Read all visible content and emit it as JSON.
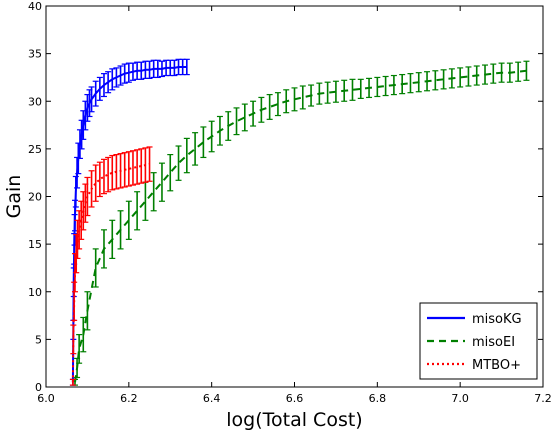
{
  "chart_data": {
    "type": "line",
    "xlabel": "log(Total Cost)",
    "ylabel": "Gain",
    "xlim": [
      6.0,
      7.2
    ],
    "ylim": [
      0,
      40
    ],
    "xticks": [
      "6.0",
      "6.2",
      "6.4",
      "6.6",
      "6.8",
      "7.0",
      "7.2"
    ],
    "yticks": [
      "0",
      "5",
      "10",
      "15",
      "20",
      "25",
      "30",
      "35",
      "40"
    ],
    "grid": false,
    "legend_position": "lower-right",
    "series": [
      {
        "name": "misoKG",
        "color": "#0000ff",
        "style": "solid",
        "x": [
          6.065,
          6.066,
          6.067,
          6.068,
          6.069,
          6.07,
          6.072,
          6.075,
          6.078,
          6.082,
          6.086,
          6.09,
          6.095,
          6.1,
          6.105,
          6.11,
          6.12,
          6.13,
          6.14,
          6.15,
          6.16,
          6.17,
          6.18,
          6.19,
          6.2,
          6.21,
          6.22,
          6.23,
          6.24,
          6.25,
          6.26,
          6.27,
          6.28,
          6.29,
          6.3,
          6.31,
          6.32,
          6.33,
          6.34
        ],
        "y": [
          0.5,
          6,
          11,
          14.5,
          16.5,
          18,
          20.5,
          22.5,
          24,
          25.5,
          26.5,
          27.5,
          28.5,
          29.3,
          29.8,
          30.2,
          30.8,
          31.3,
          31.7,
          32.0,
          32.3,
          32.5,
          32.7,
          32.9,
          33.0,
          33.1,
          33.2,
          33.2,
          33.3,
          33.3,
          33.4,
          33.4,
          33.4,
          33.5,
          33.5,
          33.5,
          33.6,
          33.6,
          33.6
        ],
        "err": [
          0.3,
          1.0,
          1.5,
          1.6,
          1.6,
          1.6,
          1.6,
          1.6,
          1.6,
          1.5,
          1.5,
          1.5,
          1.5,
          1.4,
          1.4,
          1.3,
          1.3,
          1.2,
          1.2,
          1.1,
          1.1,
          1.0,
          1.0,
          1.0,
          1.0,
          0.9,
          0.9,
          0.9,
          0.9,
          0.9,
          0.9,
          0.9,
          0.8,
          0.8,
          0.8,
          0.8,
          0.8,
          0.8,
          0.8
        ]
      },
      {
        "name": "misoEI",
        "color": "#007f00",
        "style": "dashed",
        "x": [
          6.07,
          6.075,
          6.08,
          6.09,
          6.1,
          6.12,
          6.14,
          6.16,
          6.18,
          6.2,
          6.22,
          6.24,
          6.26,
          6.28,
          6.3,
          6.32,
          6.34,
          6.36,
          6.38,
          6.4,
          6.42,
          6.44,
          6.46,
          6.48,
          6.5,
          6.52,
          6.54,
          6.56,
          6.58,
          6.6,
          6.62,
          6.64,
          6.66,
          6.68,
          6.7,
          6.72,
          6.74,
          6.76,
          6.78,
          6.8,
          6.82,
          6.84,
          6.86,
          6.88,
          6.9,
          6.92,
          6.94,
          6.96,
          6.98,
          7.0,
          7.02,
          7.04,
          7.06,
          7.08,
          7.1,
          7.12,
          7.14,
          7.16
        ],
        "y": [
          0.5,
          2.0,
          4.0,
          5.5,
          8.0,
          12.5,
          14.5,
          15.5,
          16.5,
          17.5,
          18.5,
          19.5,
          20.5,
          21.5,
          22.5,
          23.5,
          24.3,
          25.0,
          25.7,
          26.3,
          26.9,
          27.4,
          27.9,
          28.3,
          28.7,
          29.1,
          29.4,
          29.7,
          30.0,
          30.2,
          30.4,
          30.6,
          30.8,
          30.9,
          31.0,
          31.1,
          31.2,
          31.3,
          31.4,
          31.5,
          31.6,
          31.7,
          31.8,
          31.9,
          32.0,
          32.1,
          32.2,
          32.3,
          32.4,
          32.5,
          32.6,
          32.7,
          32.8,
          32.9,
          33.0,
          33.0,
          33.1,
          33.2
        ],
        "err": [
          0.3,
          1.0,
          1.5,
          1.8,
          2.0,
          2.0,
          2.0,
          2.0,
          2.0,
          2.0,
          2.0,
          2.0,
          2.0,
          2.0,
          1.9,
          1.8,
          1.8,
          1.7,
          1.6,
          1.6,
          1.5,
          1.5,
          1.4,
          1.4,
          1.3,
          1.3,
          1.3,
          1.2,
          1.2,
          1.2,
          1.2,
          1.1,
          1.1,
          1.1,
          1.1,
          1.1,
          1.1,
          1.0,
          1.0,
          1.0,
          1.0,
          1.0,
          1.0,
          1.0,
          1.0,
          1.0,
          1.0,
          1.0,
          1.0,
          1.0,
          1.0,
          1.0,
          1.0,
          1.0,
          1.0,
          1.0,
          1.0,
          1.0
        ]
      },
      {
        "name": "MTBO+",
        "color": "#ff0000",
        "style": "dotted",
        "x": [
          6.065,
          6.066,
          6.068,
          6.07,
          6.073,
          6.076,
          6.08,
          6.085,
          6.09,
          6.095,
          6.1,
          6.11,
          6.12,
          6.13,
          6.14,
          6.15,
          6.16,
          6.17,
          6.18,
          6.19,
          6.2,
          6.21,
          6.22,
          6.23,
          6.24,
          6.25
        ],
        "y": [
          0.5,
          5,
          9,
          12,
          14,
          15.5,
          16.5,
          17.5,
          18.5,
          19.3,
          20.0,
          20.8,
          21.4,
          21.8,
          22.1,
          22.3,
          22.5,
          22.6,
          22.7,
          22.8,
          22.9,
          23.0,
          23.1,
          23.2,
          23.3,
          23.4
        ],
        "err": [
          0.3,
          1.5,
          2.0,
          2.0,
          2.0,
          2.0,
          2.0,
          2.0,
          2.0,
          2.0,
          2.0,
          1.9,
          1.9,
          1.8,
          1.8,
          1.8,
          1.8,
          1.8,
          1.8,
          1.8,
          1.8,
          1.8,
          1.8,
          1.8,
          1.8,
          1.8
        ]
      }
    ]
  }
}
